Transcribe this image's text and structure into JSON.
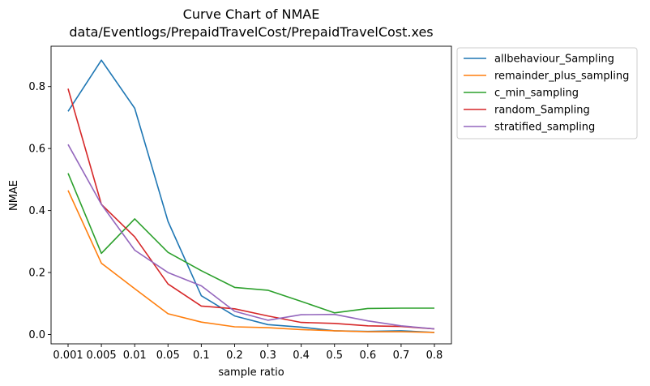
{
  "chart_data": {
    "type": "line",
    "title": "Curve Chart of NMAE",
    "subtitle": "data/Eventlogs/PrepaidTravelCost/PrepaidTravelCost.xes",
    "xlabel": "sample ratio",
    "ylabel": "NMAE",
    "categories": [
      "0.001",
      "0.005",
      "0.01",
      "0.05",
      "0.1",
      "0.2",
      "0.3",
      "0.4",
      "0.5",
      "0.6",
      "0.7",
      "0.8"
    ],
    "yticks": [
      "0.0",
      "0.2",
      "0.4",
      "0.6",
      "0.8"
    ],
    "ylim": [
      -0.03,
      0.93
    ],
    "grid": false,
    "legend_position": "outside-right-top",
    "series": [
      {
        "name": "allbehaviour_Sampling",
        "color": "#1f77b4",
        "values": [
          0.72,
          0.885,
          0.73,
          0.365,
          0.125,
          0.06,
          0.032,
          0.024,
          0.012,
          0.01,
          0.012,
          0.007
        ]
      },
      {
        "name": "remainder_plus_sampling",
        "color": "#ff7f0e",
        "values": [
          0.465,
          0.23,
          0.148,
          0.067,
          0.04,
          0.025,
          0.022,
          0.016,
          0.012,
          0.009,
          0.009,
          0.007
        ]
      },
      {
        "name": "c_min_sampling",
        "color": "#2ca02c",
        "values": [
          0.52,
          0.262,
          0.373,
          0.265,
          0.206,
          0.152,
          0.143,
          0.107,
          0.07,
          0.084,
          0.085,
          0.085
        ]
      },
      {
        "name": "random_Sampling",
        "color": "#d62728",
        "values": [
          0.793,
          0.42,
          0.315,
          0.163,
          0.092,
          0.083,
          0.06,
          0.039,
          0.036,
          0.028,
          0.026,
          0.018
        ]
      },
      {
        "name": "stratified_sampling",
        "color": "#9467bd",
        "values": [
          0.613,
          0.42,
          0.272,
          0.2,
          0.157,
          0.075,
          0.046,
          0.064,
          0.065,
          0.044,
          0.028,
          0.018
        ]
      }
    ]
  }
}
